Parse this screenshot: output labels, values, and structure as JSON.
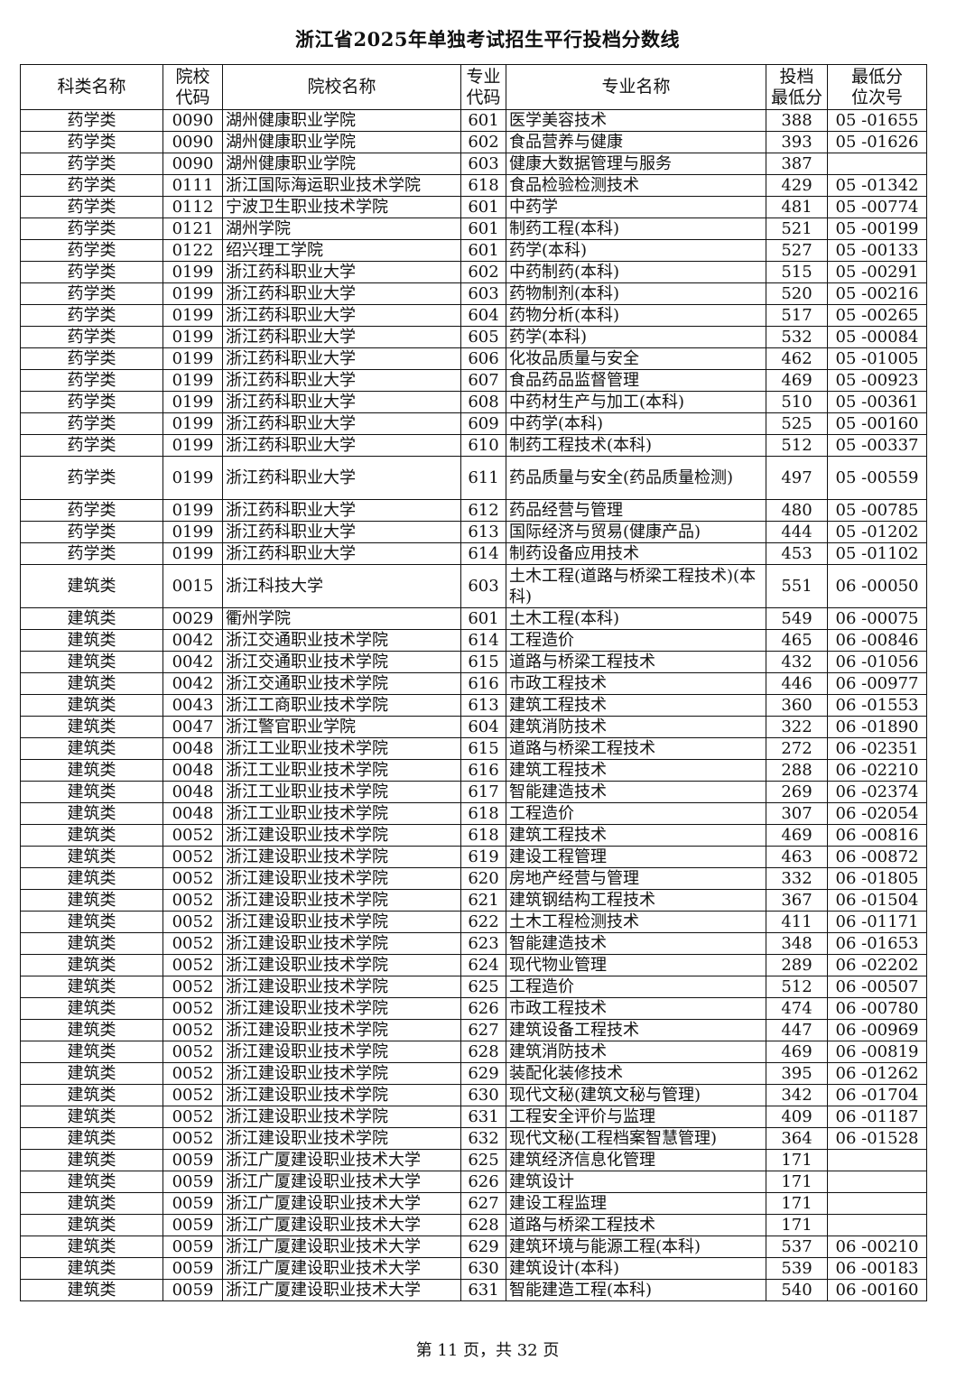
{
  "title": "浙江省2025年单独考试招生平行投档分数线",
  "headers": [
    "科类名称",
    "院校\n代码",
    "院校名称",
    "专业\n代码",
    "专业名称",
    "投档\n最低分",
    "最低分\n位次号"
  ],
  "rows": [
    [
      "药学类",
      "0090",
      "湖州健康职业学院",
      "601",
      "医学美容技术",
      "388",
      "05 -01655"
    ],
    [
      "药学类",
      "0090",
      "湖州健康职业学院",
      "602",
      "食品营养与健康",
      "393",
      "05 -01626"
    ],
    [
      "药学类",
      "0090",
      "湖州健康职业学院",
      "603",
      "健康大数据管理与服务",
      "387",
      ""
    ],
    [
      "药学类",
      "0111",
      "浙江国际海运职业技术学院",
      "618",
      "食品检验检测技术",
      "429",
      "05 -01342"
    ],
    [
      "药学类",
      "0112",
      "宁波卫生职业技术学院",
      "601",
      "中药学",
      "481",
      "05 -00774"
    ],
    [
      "药学类",
      "0121",
      "湖州学院",
      "601",
      "制药工程(本科)",
      "521",
      "05 -00199"
    ],
    [
      "药学类",
      "0122",
      "绍兴理工学院",
      "601",
      "药学(本科)",
      "527",
      "05 -00133"
    ],
    [
      "药学类",
      "0199",
      "浙江药科职业大学",
      "602",
      "中药制药(本科)",
      "515",
      "05 -00291"
    ],
    [
      "药学类",
      "0199",
      "浙江药科职业大学",
      "603",
      "药物制剂(本科)",
      "520",
      "05 -00216"
    ],
    [
      "药学类",
      "0199",
      "浙江药科职业大学",
      "604",
      "药物分析(本科)",
      "517",
      "05 -00265"
    ],
    [
      "药学类",
      "0199",
      "浙江药科职业大学",
      "605",
      "药学(本科)",
      "532",
      "05 -00084"
    ],
    [
      "药学类",
      "0199",
      "浙江药科职业大学",
      "606",
      "化妆品质量与安全",
      "462",
      "05 -01005"
    ],
    [
      "药学类",
      "0199",
      "浙江药科职业大学",
      "607",
      "食品药品监督管理",
      "469",
      "05 -00923"
    ],
    [
      "药学类",
      "0199",
      "浙江药科职业大学",
      "608",
      "中药材生产与加工(本科)",
      "510",
      "05 -00361"
    ],
    [
      "药学类",
      "0199",
      "浙江药科职业大学",
      "609",
      "中药学(本科)",
      "525",
      "05 -00160"
    ],
    [
      "药学类",
      "0199",
      "浙江药科职业大学",
      "610",
      "制药工程技术(本科)",
      "512",
      "05 -00337"
    ],
    [
      "药学类",
      "0199",
      "浙江药科职业大学",
      "611",
      "药品质量与安全(药品质量检测)",
      "497",
      "05 -00559"
    ],
    [
      "药学类",
      "0199",
      "浙江药科职业大学",
      "612",
      "药品经营与管理",
      "480",
      "05 -00785"
    ],
    [
      "药学类",
      "0199",
      "浙江药科职业大学",
      "613",
      "国际经济与贸易(健康产品)",
      "444",
      "05 -01202"
    ],
    [
      "药学类",
      "0199",
      "浙江药科职业大学",
      "614",
      "制药设备应用技术",
      "453",
      "05 -01102"
    ],
    [
      "建筑类",
      "0015",
      "浙江科技大学",
      "603",
      "土木工程(道路与桥梁工程技术)(本科)",
      "551",
      "06 -00050"
    ],
    [
      "建筑类",
      "0029",
      "衢州学院",
      "601",
      "土木工程(本科)",
      "549",
      "06 -00075"
    ],
    [
      "建筑类",
      "0042",
      "浙江交通职业技术学院",
      "614",
      "工程造价",
      "465",
      "06 -00846"
    ],
    [
      "建筑类",
      "0042",
      "浙江交通职业技术学院",
      "615",
      "道路与桥梁工程技术",
      "432",
      "06 -01056"
    ],
    [
      "建筑类",
      "0042",
      "浙江交通职业技术学院",
      "616",
      "市政工程技术",
      "446",
      "06 -00977"
    ],
    [
      "建筑类",
      "0043",
      "浙江工商职业技术学院",
      "613",
      "建筑工程技术",
      "360",
      "06 -01553"
    ],
    [
      "建筑类",
      "0047",
      "浙江警官职业学院",
      "604",
      "建筑消防技术",
      "322",
      "06 -01890"
    ],
    [
      "建筑类",
      "0048",
      "浙江工业职业技术学院",
      "615",
      "道路与桥梁工程技术",
      "272",
      "06 -02351"
    ],
    [
      "建筑类",
      "0048",
      "浙江工业职业技术学院",
      "616",
      "建筑工程技术",
      "288",
      "06 -02210"
    ],
    [
      "建筑类",
      "0048",
      "浙江工业职业技术学院",
      "617",
      "智能建造技术",
      "269",
      "06 -02374"
    ],
    [
      "建筑类",
      "0048",
      "浙江工业职业技术学院",
      "618",
      "工程造价",
      "307",
      "06 -02054"
    ],
    [
      "建筑类",
      "0052",
      "浙江建设职业技术学院",
      "618",
      "建筑工程技术",
      "469",
      "06 -00816"
    ],
    [
      "建筑类",
      "0052",
      "浙江建设职业技术学院",
      "619",
      "建设工程管理",
      "463",
      "06 -00872"
    ],
    [
      "建筑类",
      "0052",
      "浙江建设职业技术学院",
      "620",
      "房地产经营与管理",
      "332",
      "06 -01805"
    ],
    [
      "建筑类",
      "0052",
      "浙江建设职业技术学院",
      "621",
      "建筑钢结构工程技术",
      "367",
      "06 -01504"
    ],
    [
      "建筑类",
      "0052",
      "浙江建设职业技术学院",
      "622",
      "土木工程检测技术",
      "411",
      "06 -01171"
    ],
    [
      "建筑类",
      "0052",
      "浙江建设职业技术学院",
      "623",
      "智能建造技术",
      "348",
      "06 -01653"
    ],
    [
      "建筑类",
      "0052",
      "浙江建设职业技术学院",
      "624",
      "现代物业管理",
      "289",
      "06 -02202"
    ],
    [
      "建筑类",
      "0052",
      "浙江建设职业技术学院",
      "625",
      "工程造价",
      "512",
      "06 -00507"
    ],
    [
      "建筑类",
      "0052",
      "浙江建设职业技术学院",
      "626",
      "市政工程技术",
      "474",
      "06 -00780"
    ],
    [
      "建筑类",
      "0052",
      "浙江建设职业技术学院",
      "627",
      "建筑设备工程技术",
      "447",
      "06 -00969"
    ],
    [
      "建筑类",
      "0052",
      "浙江建设职业技术学院",
      "628",
      "建筑消防技术",
      "469",
      "06 -00819"
    ],
    [
      "建筑类",
      "0052",
      "浙江建设职业技术学院",
      "629",
      "装配化装修技术",
      "395",
      "06 -01262"
    ],
    [
      "建筑类",
      "0052",
      "浙江建设职业技术学院",
      "630",
      "现代文秘(建筑文秘与管理)",
      "342",
      "06 -01704"
    ],
    [
      "建筑类",
      "0052",
      "浙江建设职业技术学院",
      "631",
      "工程安全评价与监理",
      "409",
      "06 -01187"
    ],
    [
      "建筑类",
      "0052",
      "浙江建设职业技术学院",
      "632",
      "现代文秘(工程档案智慧管理)",
      "364",
      "06 -01528"
    ],
    [
      "建筑类",
      "0059",
      "浙江广厦建设职业技术大学",
      "625",
      "建筑经济信息化管理",
      "171",
      ""
    ],
    [
      "建筑类",
      "0059",
      "浙江广厦建设职业技术大学",
      "626",
      "建筑设计",
      "171",
      ""
    ],
    [
      "建筑类",
      "0059",
      "浙江广厦建设职业技术大学",
      "627",
      "建设工程监理",
      "171",
      ""
    ],
    [
      "建筑类",
      "0059",
      "浙江广厦建设职业技术大学",
      "628",
      "道路与桥梁工程技术",
      "171",
      ""
    ],
    [
      "建筑类",
      "0059",
      "浙江广厦建设职业技术大学",
      "629",
      "建筑环境与能源工程(本科)",
      "537",
      "06 -00210"
    ],
    [
      "建筑类",
      "0059",
      "浙江广厦建设职业技术大学",
      "630",
      "建筑设计(本科)",
      "539",
      "06 -00183"
    ],
    [
      "建筑类",
      "0059",
      "浙江广厦建设职业技术大学",
      "631",
      "智能建造工程(本科)",
      "540",
      "06 -00160"
    ]
  ],
  "footer": "第 11 页，共 32 页"
}
